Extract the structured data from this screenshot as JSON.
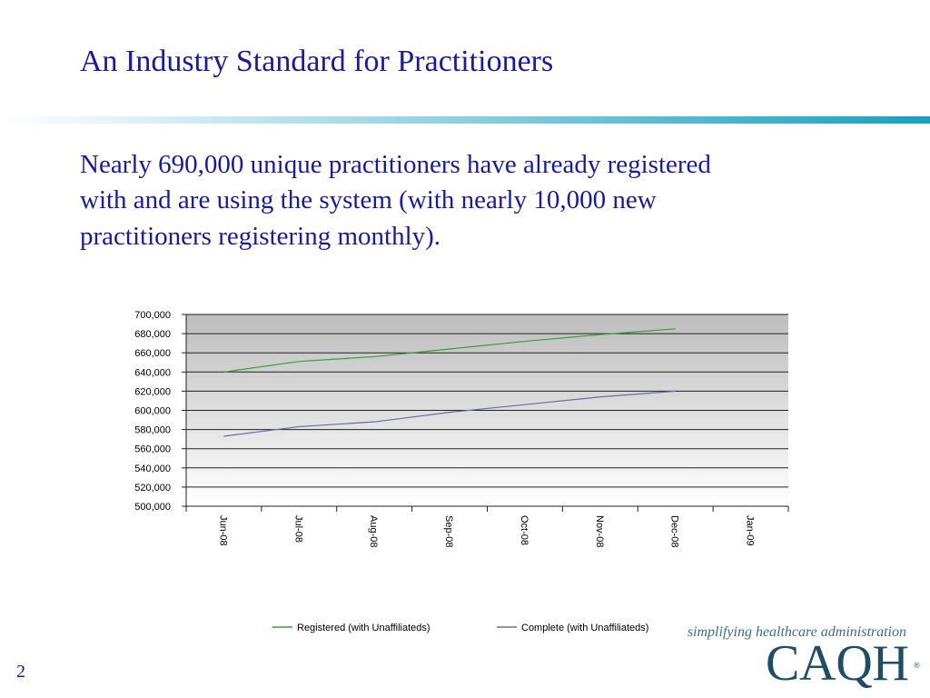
{
  "slide": {
    "title": "An Industry Standard for Practitioners",
    "body": [
      "Nearly 690,000 unique practitioners have already registered",
      "with and are using the system (with nearly 10,000 new",
      "practitioners registering monthly)."
    ],
    "page_number": "2",
    "tagline": "simplifying healthcare administration",
    "logo": "CAQH"
  },
  "chart_data": {
    "type": "line",
    "categories": [
      "Jun-08",
      "Jul-08",
      "Aug-08",
      "Sep-08",
      "Oct-08",
      "Nov-08",
      "Dec-08",
      "Jan-09"
    ],
    "series": [
      {
        "name": "Registered (with Unaffiliateds)",
        "color": "#3f9b3f",
        "values": [
          640000,
          651000,
          656000,
          664000,
          672000,
          679000,
          685000,
          null
        ]
      },
      {
        "name": "Complete (with Unaffiliateds)",
        "color": "#6b6ba8",
        "values": [
          573000,
          583000,
          588000,
          598000,
          606000,
          614000,
          620000,
          null
        ]
      }
    ],
    "ylim": [
      500000,
      700000
    ],
    "yticks": [
      {
        "value": 500000,
        "label": "500,000"
      },
      {
        "value": 520000,
        "label": "520,000"
      },
      {
        "value": 540000,
        "label": "540,000"
      },
      {
        "value": 560000,
        "label": "560,000"
      },
      {
        "value": 580000,
        "label": "580,000"
      },
      {
        "value": 600000,
        "label": "600,000"
      },
      {
        "value": 620000,
        "label": "620,000"
      },
      {
        "value": 640000,
        "label": "640,000"
      },
      {
        "value": 660000,
        "label": "660,000"
      },
      {
        "value": 680000,
        "label": "680,000"
      },
      {
        "value": 700000,
        "label": "700,000"
      }
    ],
    "grid": true,
    "legend": "bottom"
  }
}
